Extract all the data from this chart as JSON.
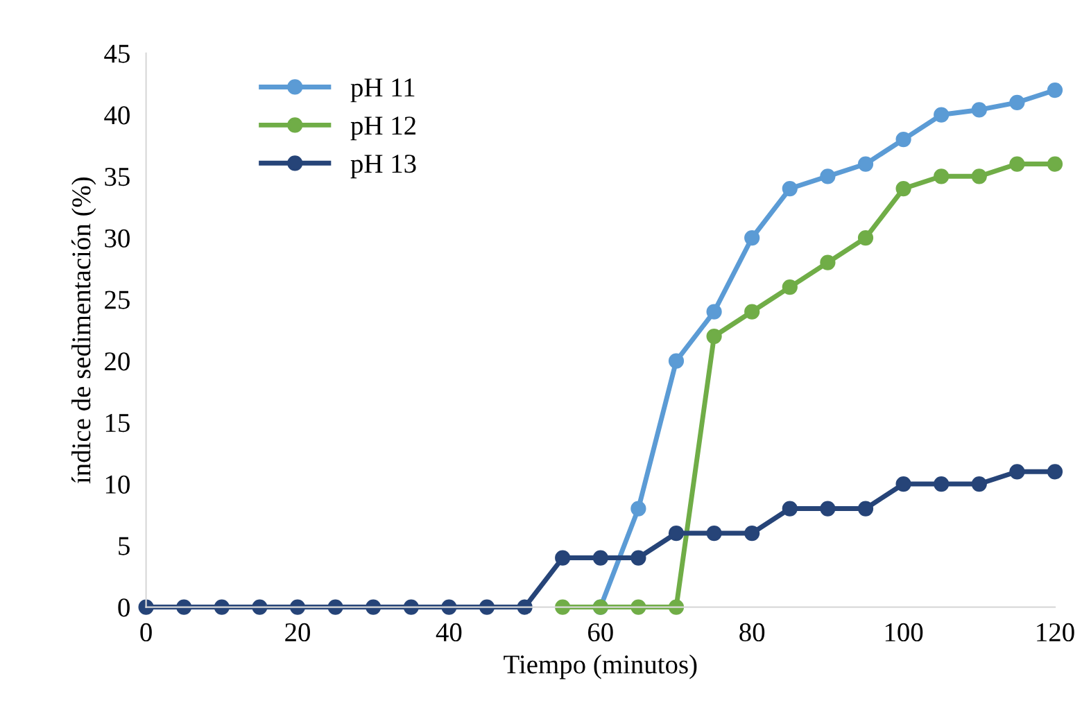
{
  "chart_data": {
    "type": "line",
    "xlabel": "Tiempo (minutos)",
    "ylabel": "índice de sedimentación (%)",
    "x": [
      0,
      5,
      10,
      15,
      20,
      25,
      30,
      35,
      40,
      45,
      50,
      55,
      60,
      65,
      70,
      75,
      80,
      85,
      90,
      95,
      100,
      105,
      110,
      115,
      120
    ],
    "series": [
      {
        "name": "pH 11",
        "color": "#5b9bd5",
        "values": [
          null,
          null,
          null,
          null,
          null,
          null,
          null,
          null,
          null,
          null,
          null,
          null,
          0,
          8,
          20,
          24,
          30,
          34,
          35,
          36,
          38,
          40,
          40.4,
          41,
          42
        ]
      },
      {
        "name": "pH 12",
        "color": "#70ad47",
        "values": [
          null,
          null,
          null,
          null,
          null,
          null,
          null,
          null,
          null,
          null,
          null,
          0,
          0,
          0,
          0,
          22,
          24,
          26,
          28,
          30,
          34,
          35,
          35,
          36,
          36
        ]
      },
      {
        "name": "pH 13",
        "color": "#264478",
        "values": [
          0,
          0,
          0,
          0,
          0,
          0,
          0,
          0,
          0,
          0,
          0,
          4,
          4,
          4,
          6,
          6,
          6,
          8,
          8,
          8,
          10,
          10,
          10,
          11,
          11
        ]
      }
    ],
    "xlim": [
      0,
      120
    ],
    "xticks": [
      0,
      20,
      40,
      60,
      80,
      100,
      120
    ],
    "ylim": [
      0,
      45
    ],
    "yticks": [
      0,
      5,
      10,
      15,
      20,
      25,
      30,
      35,
      40,
      45
    ],
    "grid": false,
    "legend": "top left",
    "marker": "circle",
    "line_style": "solid"
  }
}
